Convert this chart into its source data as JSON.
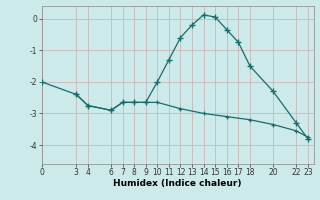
{
  "xlabel": "Humidex (Indice chaleur)",
  "bg_color": "#cceaea",
  "line_color": "#1a6b6b",
  "grid_color": "#c8b8b8",
  "xticks": [
    0,
    3,
    4,
    6,
    7,
    8,
    9,
    10,
    11,
    12,
    13,
    14,
    15,
    16,
    17,
    18,
    20,
    22,
    23
  ],
  "yticks": [
    0,
    -1,
    -2,
    -3,
    -4
  ],
  "ylim": [
    -4.6,
    0.4
  ],
  "xlim": [
    0,
    23.5
  ],
  "curve1_x": [
    0,
    3,
    4,
    6,
    7,
    8,
    9,
    10,
    11,
    12,
    13,
    14,
    15,
    16,
    17,
    18,
    20,
    22,
    23
  ],
  "curve1_y": [
    -2.0,
    -2.4,
    -2.75,
    -2.9,
    -2.65,
    -2.65,
    -2.65,
    -2.0,
    -1.3,
    -0.6,
    -0.2,
    0.12,
    0.05,
    -0.35,
    -0.75,
    -1.5,
    -2.3,
    -3.3,
    -3.8
  ],
  "curve2_x": [
    3,
    4,
    6,
    7,
    8,
    9,
    10,
    12,
    14,
    16,
    18,
    20,
    22,
    23
  ],
  "curve2_y": [
    -2.4,
    -2.75,
    -2.9,
    -2.65,
    -2.65,
    -2.65,
    -2.65,
    -2.85,
    -3.0,
    -3.1,
    -3.2,
    -3.35,
    -3.55,
    -3.75
  ],
  "tick_fontsize": 5.5,
  "xlabel_fontsize": 6.5
}
